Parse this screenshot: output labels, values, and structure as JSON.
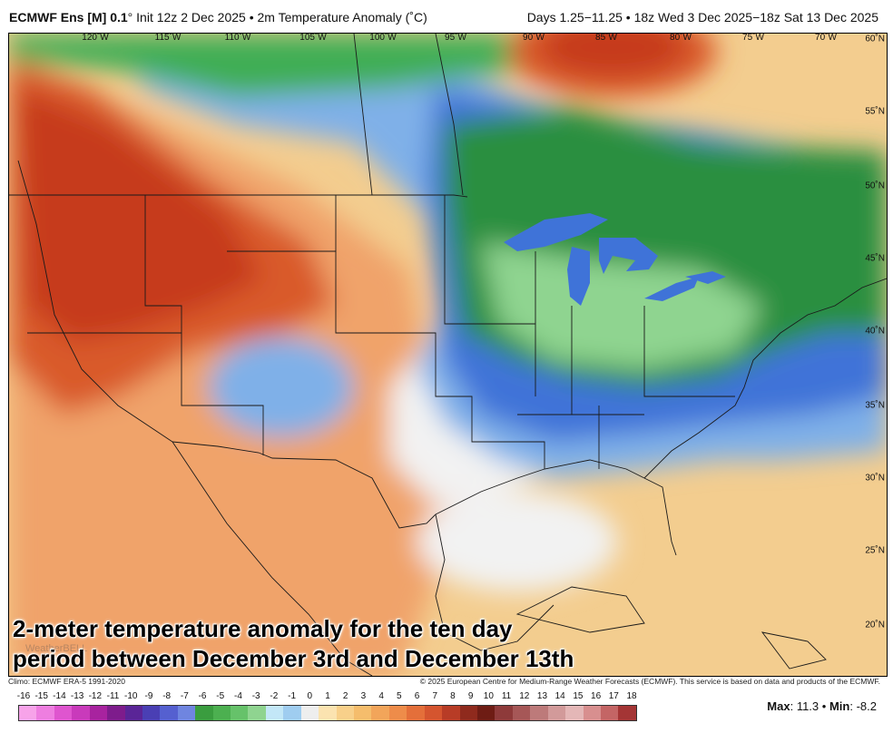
{
  "header": {
    "model": "ECMWF Ens [M] 0.1",
    "degree": "°",
    "init": "Init 12z 2 Dec 2025",
    "sep": "•",
    "field": "2m Temperature Anomaly (˚C)",
    "valid": "Days 1.25−11.25 • 18z Wed 3 Dec 2025−18z Sat 13 Dec 2025"
  },
  "map": {
    "lon_labels": [
      "120˚W",
      "115˚W",
      "110˚W",
      "105˚W",
      "100˚W",
      "95˚W",
      "90˚W",
      "85˚W",
      "80˚W",
      "75˚W",
      "70˚W"
    ],
    "lat_labels": [
      "60˚N",
      "55˚N",
      "50˚N",
      "45˚N",
      "40˚N",
      "35˚N",
      "30˚N",
      "25˚N",
      "20˚N"
    ],
    "caption_line1": "2-meter temperature anomaly for the ten day",
    "caption_line2": "period between December 3rd and December 13th",
    "watermark": "WeatherBELL",
    "colors": {
      "ocean_warm": "#f3cd8f",
      "land_warm": "#f0a36a",
      "hot": "#d95a2c",
      "very_hot": "#c63a1a",
      "neutral": "#f2f2f2",
      "cool_blue": "#7fb0e8",
      "blue": "#3f73d8",
      "green": "#3fae55",
      "dark_green": "#2a8f3f",
      "light_green": "#8fd490"
    }
  },
  "footer": {
    "climo": "Climo: ECMWF ERA-5 1991-2020",
    "copyright": "© 2025 European Centre for Medium-Range Weather Forecasts (ECMWF). This service is based on data and products of the ECMWF."
  },
  "legend": {
    "labels": [
      "-16",
      "-15",
      "-14",
      "-13",
      "-12",
      "-11",
      "-10",
      "-9",
      "-8",
      "-7",
      "-6",
      "-5",
      "-4",
      "-3",
      "-2",
      "-1",
      "0",
      "1",
      "2",
      "3",
      "4",
      "5",
      "6",
      "7",
      "8",
      "9",
      "10",
      "11",
      "12",
      "13",
      "14",
      "15",
      "16",
      "17",
      "18"
    ],
    "colors": [
      "#f7a3e9",
      "#ee7ee0",
      "#df55cf",
      "#c93abb",
      "#a8239f",
      "#7e1c8c",
      "#5a2597",
      "#4a3fb4",
      "#5560d0",
      "#6f85e0",
      "#3a9d3f",
      "#4cb050",
      "#66c26a",
      "#8fd490",
      "#c3e7f7",
      "#9fcdf0",
      "#eeeeee",
      "#fbe3b0",
      "#f8d08a",
      "#f5bd6c",
      "#f2a55a",
      "#ee8c4a",
      "#e46f3a",
      "#d5552f",
      "#b83c26",
      "#8f2a1d",
      "#6e1c14",
      "#8e3a3a",
      "#a65757",
      "#bd7a7a",
      "#d29a9a",
      "#e4b7b7",
      "#d88f8f",
      "#c46565",
      "#a43535"
    ],
    "stats_max_label": "Max",
    "stats_max": "11.3",
    "stats_sep": "•",
    "stats_min_label": "Min",
    "stats_min": "-8.2"
  }
}
